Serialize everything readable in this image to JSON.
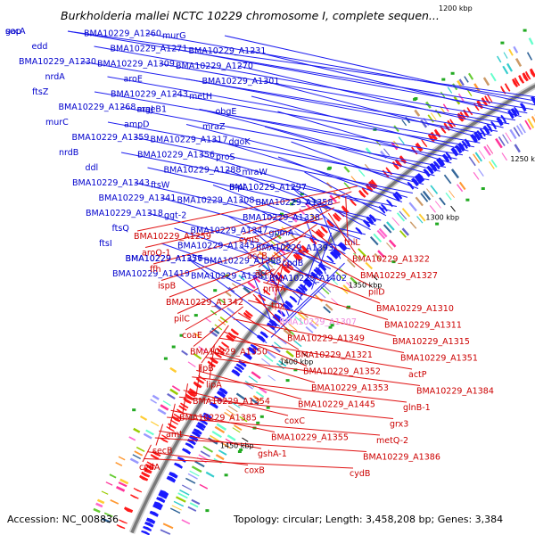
{
  "header": {
    "title": "Burkholderia mallei NCTC 10229 chromosome I, complete sequen...",
    "corner_tick": "1200 kbp"
  },
  "footer": {
    "accession": "Accession: NC_008836",
    "summary": "Topology: circular; Length: 3,458,208 bp; Genes: 3,384"
  },
  "map": {
    "ticks": [
      "1250 kbp",
      "1300 kbp",
      "1350 kbp",
      "1400 kbp",
      "1450 kbp"
    ],
    "colors": {
      "forward_label": "#0000cc",
      "reverse_label": "#cc0000",
      "highlight_label": "#ee88dd",
      "forward_feature": "#1a1aff",
      "reverse_feature": "#ff1a1a",
      "backbone": "#7a7a7a"
    }
  },
  "forward_labels": [
    {
      "text": "gap"
    },
    {
      "text": "BMA10229_A1260"
    },
    {
      "text": "murG"
    },
    {
      "text": "secA"
    },
    {
      "text": "BMA10229_A1271"
    },
    {
      "text": "BMA10229_A1231"
    },
    {
      "text": "edd"
    },
    {
      "text": "BMA10229_A1309"
    },
    {
      "text": "BMA10229_A1270"
    },
    {
      "text": "BMA10229_A1230"
    },
    {
      "text": "aroE"
    },
    {
      "text": "BMA10229_A1301"
    },
    {
      "text": "nrdA"
    },
    {
      "text": "BMA10229_A1243"
    },
    {
      "text": "metH"
    },
    {
      "text": "ftsZ"
    },
    {
      "text": "argJ"
    },
    {
      "text": "obgE"
    },
    {
      "text": "BMA10229_A1268"
    },
    {
      "text": "maeB1"
    },
    {
      "text": "mraZ"
    },
    {
      "text": "murC"
    },
    {
      "text": "ampD"
    },
    {
      "text": "dgoK"
    },
    {
      "text": "BMA10229_A1359"
    },
    {
      "text": "BMA10229_A1317"
    },
    {
      "text": "proS"
    },
    {
      "text": "nrdB"
    },
    {
      "text": "BMA10229_A1356"
    },
    {
      "text": "mraW"
    },
    {
      "text": "ddl"
    },
    {
      "text": "BMA10229_A1288"
    },
    {
      "text": "mpl"
    },
    {
      "text": "BMA10229_A1343"
    },
    {
      "text": "ftsW"
    },
    {
      "text": "BMA10229_A1297"
    },
    {
      "text": "BMA10229_A1341"
    },
    {
      "text": "BMA10229_A1308"
    },
    {
      "text": "BMA10229_A1358"
    },
    {
      "text": "BMA10229_A1318"
    },
    {
      "text": "ggt-2"
    },
    {
      "text": "BMA10229_A1338"
    },
    {
      "text": "ftsQ"
    },
    {
      "text": "BMA10229_A1347"
    },
    {
      "text": "gpmA"
    },
    {
      "text": "ftsI"
    },
    {
      "text": "BMA10229_A1345"
    },
    {
      "text": "BMA10229_A1393"
    },
    {
      "text": "BMA10229_A1357"
    },
    {
      "text": "BMA10229_A1398"
    },
    {
      "text": "cpdB"
    },
    {
      "text": "BMA10229_A1376"
    },
    {
      "text": "BMA10229_A1381"
    },
    {
      "text": "BMA10229_A1402"
    },
    {
      "text": "BMA10229_A1419"
    }
  ],
  "reverse_labels": [
    {
      "text": "BMA10229_A1259"
    },
    {
      "text": "cynS"
    },
    {
      "text": "thiL"
    },
    {
      "text": "aroQ-1"
    },
    {
      "text": "accB"
    },
    {
      "text": "BMA10229_A1322"
    },
    {
      "text": "ffh"
    },
    {
      "text": "accC"
    },
    {
      "text": "BMA10229_A1327"
    },
    {
      "text": "ispB"
    },
    {
      "text": "prmA"
    },
    {
      "text": "pilD"
    },
    {
      "text": "BMA10229_A1342"
    },
    {
      "text": "tpx"
    },
    {
      "text": "BMA10229_A1310"
    },
    {
      "text": "pilC"
    },
    {
      "text": "BMA10229_A1307"
    },
    {
      "text": "BMA10229_A1311"
    },
    {
      "text": "coaE"
    },
    {
      "text": "BMA10229_A1349"
    },
    {
      "text": "BMA10229_A1315"
    },
    {
      "text": "BMA10229_A1350"
    },
    {
      "text": "BMA10229_A1321"
    },
    {
      "text": "BMA10229_A1351"
    },
    {
      "text": "lipB"
    },
    {
      "text": "BMA10229_A1352"
    },
    {
      "text": "actP"
    },
    {
      "text": "lipA"
    },
    {
      "text": "BMA10229_A1353"
    },
    {
      "text": "BMA10229_A1384"
    },
    {
      "text": "BMA10229_A1354"
    },
    {
      "text": "BMA10229_A1445"
    },
    {
      "text": "glnB-1"
    },
    {
      "text": "BMA10229_A1385"
    },
    {
      "text": "coxC"
    },
    {
      "text": "grx3"
    },
    {
      "text": "amt"
    },
    {
      "text": "BMA10229_A1355"
    },
    {
      "text": "metQ-2"
    },
    {
      "text": "secB"
    },
    {
      "text": "gshA-1"
    },
    {
      "text": "BMA10229_A1386"
    },
    {
      "text": "cydA"
    },
    {
      "text": "coxB"
    },
    {
      "text": "cydB"
    }
  ]
}
